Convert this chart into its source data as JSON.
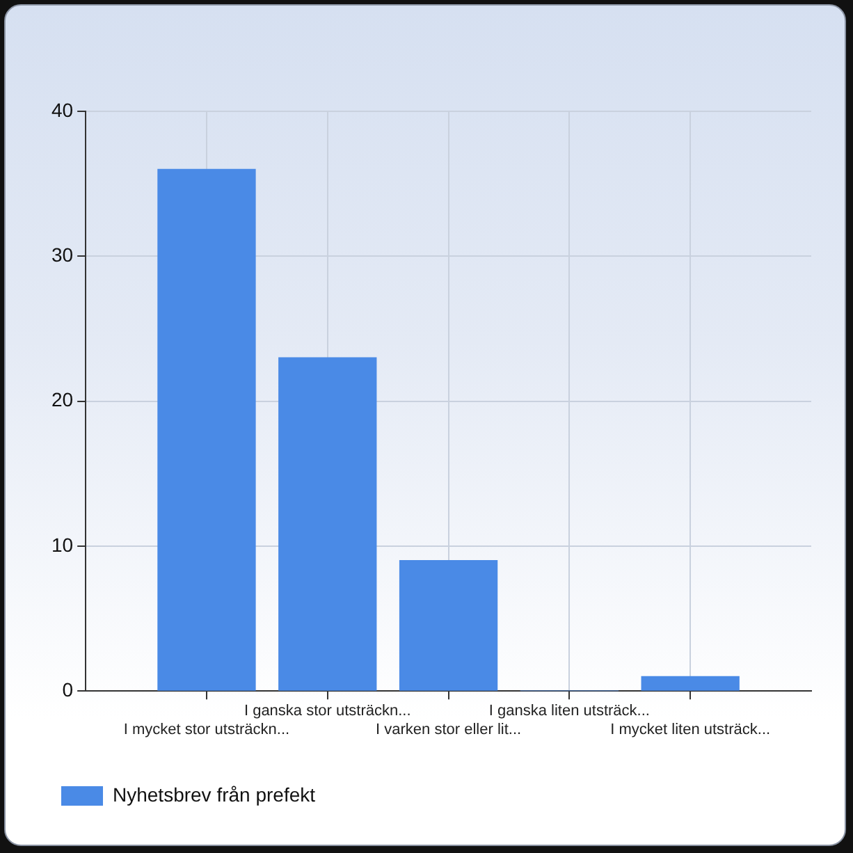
{
  "chart_data": {
    "type": "bar",
    "categories": [
      "I mycket stor utsträckn...",
      "I ganska stor utsträckn...",
      "I varken stor eller lit...",
      "I ganska liten utsträck...",
      "I mycket liten utsträck..."
    ],
    "series": [
      {
        "name": "Nyhetsbrev från prefekt",
        "color": "#4a8ae6",
        "values": [
          36,
          23,
          9,
          0,
          1
        ]
      }
    ],
    "ylim": [
      0,
      40
    ],
    "yticks": [
      0,
      10,
      20,
      30,
      40
    ],
    "grid": true,
    "legend": "bottom left"
  }
}
